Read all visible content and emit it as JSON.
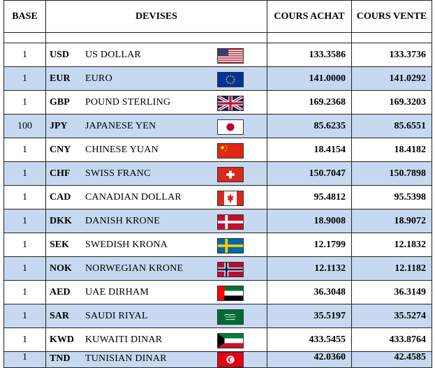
{
  "headers": {
    "base": "BASE",
    "devises": "DEVISES",
    "achat": "COURS ACHAT",
    "vente": "COURS VENTE"
  },
  "rows": [
    {
      "base": "1",
      "code": "USD",
      "name": "US DOLLAR",
      "achat": "133.3586",
      "vente": "133.3736",
      "flag": "usa-flag-icon"
    },
    {
      "base": "1",
      "code": "EUR",
      "name": "EURO",
      "achat": "141.0000",
      "vente": "141.0292",
      "flag": "eu-flag-icon"
    },
    {
      "base": "1",
      "code": "GBP",
      "name": "POUND STERLING",
      "achat": "169.2368",
      "vente": "169.3203",
      "flag": "uk-flag-icon"
    },
    {
      "base": "100",
      "code": "JPY",
      "name": "JAPANESE YEN",
      "achat": "85.6235",
      "vente": "85.6551",
      "flag": "japan-flag-icon"
    },
    {
      "base": "1",
      "code": "CNY",
      "name": "CHINESE YUAN",
      "achat": "18.4154",
      "vente": "18.4182",
      "flag": "china-flag-icon"
    },
    {
      "base": "1",
      "code": "CHF",
      "name": "SWISS FRANC",
      "achat": "150.7047",
      "vente": "150.7898",
      "flag": "swiss-flag-icon"
    },
    {
      "base": "1",
      "code": "CAD",
      "name": "CANADIAN DOLLAR",
      "achat": "95.4812",
      "vente": "95.5398",
      "flag": "canada-flag-icon"
    },
    {
      "base": "1",
      "code": "DKK",
      "name": "DANISH KRONE",
      "achat": "18.9008",
      "vente": "18.9072",
      "flag": "denmark-flag-icon"
    },
    {
      "base": "1",
      "code": "SEK",
      "name": "SWEDISH KRONA",
      "achat": "12.1799",
      "vente": "12.1832",
      "flag": "sweden-flag-icon"
    },
    {
      "base": "1",
      "code": "NOK",
      "name": "NORWEGIAN KRONE",
      "achat": "12.1132",
      "vente": "12.1182",
      "flag": "norway-flag-icon"
    },
    {
      "base": "1",
      "code": "AED",
      "name": "UAE DIRHAM",
      "achat": "36.3048",
      "vente": "36.3149",
      "flag": "uae-flag-icon"
    },
    {
      "base": "1",
      "code": "SAR",
      "name": "SAUDI RIYAL",
      "achat": "35.5197",
      "vente": "35.5274",
      "flag": "saudi-flag-icon"
    },
    {
      "base": "1",
      "code": "KWD",
      "name": "KUWAITI DINAR",
      "achat": "433.5455",
      "vente": "433.8764",
      "flag": "kuwait-flag-icon"
    },
    {
      "base": "1",
      "code": "TND",
      "name": "TUNISIAN DINAR",
      "achat": "42.0360",
      "vente": "42.4585",
      "flag": "tunisia-flag-icon"
    }
  ]
}
